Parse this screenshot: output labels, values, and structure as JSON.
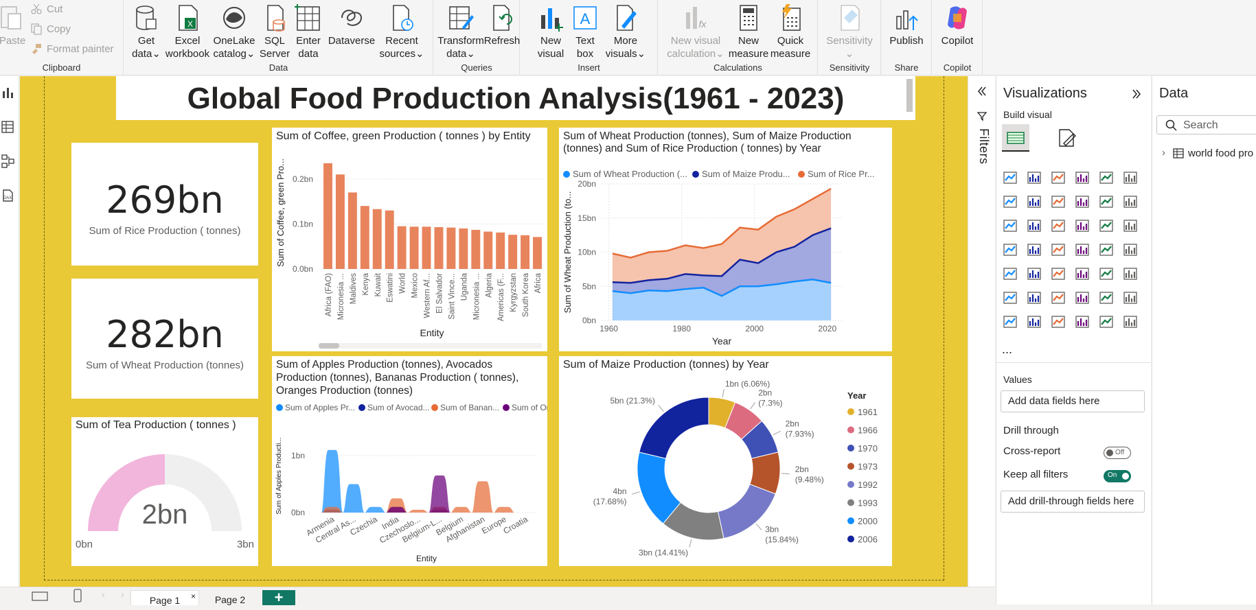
{
  "ribbon": {
    "clipboard": {
      "label": "Clipboard",
      "paste": "Paste",
      "cut": "Cut",
      "copy": "Copy",
      "format_painter": "Format painter"
    },
    "data": {
      "label": "Data",
      "get_data": [
        "Get",
        "data"
      ],
      "excel": [
        "Excel",
        "workbook"
      ],
      "onelake": [
        "OneLake",
        "catalog"
      ],
      "sql": [
        "SQL",
        "Server"
      ],
      "enter": [
        "Enter",
        "data"
      ],
      "dataverse": [
        "Dataverse",
        ""
      ],
      "recent": [
        "Recent",
        "sources"
      ]
    },
    "queries": {
      "label": "Queries",
      "transform": [
        "Transform",
        "data"
      ],
      "refresh": [
        "Refresh",
        ""
      ]
    },
    "insert": {
      "label": "Insert",
      "new_visual": [
        "New",
        "visual"
      ],
      "text_box": [
        "Text",
        "box"
      ],
      "more_visuals": [
        "More",
        "visuals"
      ]
    },
    "calculations": {
      "label": "Calculations",
      "new_visual_calc": [
        "New visual",
        "calculation"
      ],
      "new_measure": [
        "New",
        "measure"
      ],
      "quick_measure": [
        "Quick",
        "measure"
      ]
    },
    "sensitivity": {
      "label": "Sensitivity",
      "button": "Sensitivity"
    },
    "share": {
      "label": "Share",
      "publish": "Publish"
    },
    "copilot": {
      "label": "Copilot",
      "button": "Copilot"
    }
  },
  "report": {
    "title": "Global Food Production Analysis(1961 - 2023)",
    "kpi_rice": {
      "value": "269bn",
      "label": "Sum of Rice  Production ( tonnes)"
    },
    "kpi_wheat": {
      "value": "282bn",
      "label": "Sum of Wheat Production (tonnes)"
    },
    "gauge_tea": {
      "title": "Sum of Tea Production ( tonnes )",
      "value": "2bn",
      "min": "0bn",
      "max": "3bn",
      "fill_fraction": 0.5
    }
  },
  "chart_data": [
    {
      "type": "bar",
      "title": "Sum of Coffee, green Production ( tonnes ) by Entity",
      "xlabel": "Entity",
      "ylabel": "Sum of Coffee, green Pro...",
      "ylim": [
        0,
        0.25
      ],
      "yticks": [
        "0.0bn",
        "0.1bn",
        "0.2bn"
      ],
      "categories": [
        "Africa (FAO)",
        "Micronesia ...",
        "Maldives",
        "Kenya",
        "Kuwait",
        "Eswatini",
        "World",
        "Mexico",
        "Western Af...",
        "El Salvador",
        "Saint Vince...",
        "Uganda",
        "Micronesia ...",
        "Algeria",
        "Americas (F...",
        "Kyrgyzstan",
        "South Korea",
        "Africa"
      ],
      "values": [
        0.235,
        0.21,
        0.17,
        0.14,
        0.133,
        0.13,
        0.095,
        0.094,
        0.094,
        0.093,
        0.092,
        0.09,
        0.087,
        0.083,
        0.081,
        0.076,
        0.075,
        0.071
      ],
      "color": "#e8845c"
    },
    {
      "type": "area",
      "title": "Sum of Wheat Production (tonnes), Sum of Maize Production (tonnes) and Sum of Rice Production ( tonnes) by Year",
      "xlabel": "Year",
      "ylabel": "Sum of Wheat Production (to...",
      "ylim": [
        0,
        20
      ],
      "xticks": [
        "1960",
        "1980",
        "2000",
        "2020"
      ],
      "yticks": [
        "0bn",
        "5bn",
        "10bn",
        "15bn",
        "20bn"
      ],
      "x": [
        1961,
        1966,
        1971,
        1976,
        1981,
        1986,
        1991,
        1996,
        2001,
        2006,
        2011,
        2016,
        2021
      ],
      "series": [
        {
          "name": "Sum of Wheat Production (...",
          "color": "#118dff",
          "values": [
            4.3,
            4.0,
            4.4,
            4.3,
            4.6,
            4.8,
            3.6,
            5.0,
            5.0,
            5.3,
            5.7,
            6.0,
            5.5
          ]
        },
        {
          "name": "Sum of Maize Produ...",
          "color": "#12239e",
          "values": [
            5.6,
            5.5,
            5.9,
            6.1,
            6.8,
            6.6,
            6.5,
            8.9,
            8.4,
            10.0,
            10.8,
            12.5,
            13.5
          ]
        },
        {
          "name": "Sum of Rice  Pr...",
          "color": "#e66c37",
          "values": [
            9.8,
            9.2,
            10.0,
            10.2,
            11.0,
            10.6,
            11.2,
            13.6,
            13.3,
            15.2,
            16.3,
            17.8,
            19.3
          ]
        }
      ]
    },
    {
      "type": "area",
      "title": "Sum of Apples Production (tonnes), Avocados Production (tonnes), Bananas Production ( tonnes), Oranges Production (tonnes)",
      "xlabel": "Entity",
      "ylabel": "Sum of Apples Producti...",
      "yticks": [
        "0bn",
        "1bn"
      ],
      "categories": [
        "Armenia",
        "Central As...",
        "Czechia",
        "India",
        "Czechoslo...",
        "Belgium-L...",
        "Belgium",
        "Afghanistan",
        "Europe",
        "Croatia"
      ],
      "series": [
        {
          "name": "Sum of Apples Pr...",
          "color": "#118dff",
          "values": [
            1.1,
            0.5,
            0.1,
            0.05,
            0.0,
            0.05,
            0.0,
            0.0,
            0.0,
            0.0
          ]
        },
        {
          "name": "Sum of Avocad...",
          "color": "#12239e",
          "values": [
            0.05,
            0.0,
            0.0,
            0.1,
            0.0,
            0.05,
            0.0,
            0.0,
            0.0,
            0.0
          ]
        },
        {
          "name": "Sum of Banan...",
          "color": "#e66c37",
          "values": [
            0.1,
            0.0,
            0.0,
            0.25,
            0.05,
            0.1,
            0.1,
            0.55,
            0.1,
            0.0
          ]
        },
        {
          "name": "Sum of Orang...",
          "color": "#6b007b",
          "values": [
            0.0,
            0.0,
            0.0,
            0.1,
            0.0,
            0.65,
            0.0,
            0.0,
            0.0,
            0.0
          ]
        }
      ]
    },
    {
      "type": "pie",
      "title": "Sum of Maize Production (tonnes) by Year",
      "legend_title": "Year",
      "slices": [
        {
          "label": "1961",
          "value": 6.06,
          "text": "1bn (6.06%)",
          "color": "#e1b12c"
        },
        {
          "label": "1966",
          "value": 7.3,
          "text": "2bn (7.3%)",
          "color": "#dd6b7f"
        },
        {
          "label": "1970",
          "value": 7.93,
          "text": "2bn (7.93%)",
          "color": "#3f51b5"
        },
        {
          "label": "1973",
          "value": 9.48,
          "text": "2bn (9.48%)",
          "color": "#b5532a"
        },
        {
          "label": "1992",
          "value": 15.84,
          "text": "3bn (15.84%)",
          "color": "#7579c8"
        },
        {
          "label": "1993",
          "value": 14.41,
          "text": "3bn (14.41%)",
          "color": "#808080"
        },
        {
          "label": "2000",
          "value": 17.68,
          "text": "4bn (17.68%)",
          "color": "#118dff"
        },
        {
          "label": "2006",
          "value": 21.3,
          "text": "5bn (21.3%)",
          "color": "#12239e"
        }
      ]
    }
  ],
  "filters": {
    "label": "Filters"
  },
  "viz_pane": {
    "title": "Visualizations",
    "build_visual": "Build visual",
    "values_label": "Values",
    "values_well": "Add data fields here",
    "drill_through": "Drill through",
    "cross_report": "Cross-report",
    "cross_report_state": "Off",
    "keep_filters": "Keep all filters",
    "keep_filters_state": "On",
    "drill_well": "Add drill-through fields here",
    "more": "..."
  },
  "data_pane": {
    "title": "Data",
    "search_placeholder": "Search",
    "table": "world food pro"
  },
  "pages": {
    "page1": "Page 1",
    "page2": "Page 2",
    "add": "+"
  }
}
